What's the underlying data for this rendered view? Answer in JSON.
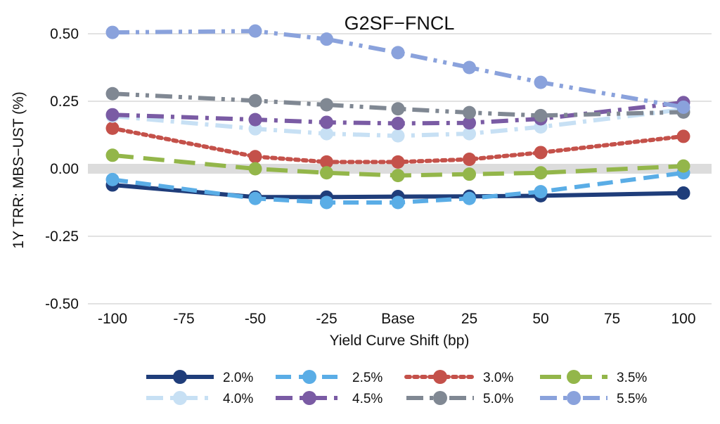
{
  "chart_data": {
    "type": "line",
    "title": "G2SF−FNCL",
    "xlabel": "Yield Curve Shift (bp)",
    "ylabel": "1Y TRR: MBS−UST (%)",
    "categories": [
      "-100",
      "-75",
      "-50",
      "-25",
      "Base",
      "25",
      "50",
      "75",
      "100"
    ],
    "x_tick_labels": [
      "-100",
      "-75",
      "-50",
      "-25",
      "Base",
      "25",
      "50",
      "75",
      "100"
    ],
    "y_tick_labels": [
      "0.50",
      "0.25",
      "0.00",
      "-0.25",
      "-0.50"
    ],
    "y_ticks": [
      0.5,
      0.25,
      0,
      -0.25,
      -0.5
    ],
    "ylim": [
      -0.5,
      0.5
    ],
    "grid": true,
    "zero_band": true,
    "legend_position": "bottom",
    "series": [
      {
        "name": "2.0%",
        "color": "#1f3d7a",
        "dash": "solid",
        "values": [
          -0.06,
          null,
          -0.105,
          -0.105,
          -0.103,
          -0.102,
          -0.1,
          null,
          -0.09
        ]
      },
      {
        "name": "2.5%",
        "color": "#5aade6",
        "dash": "dash",
        "values": [
          -0.04,
          null,
          -0.11,
          -0.125,
          -0.125,
          -0.11,
          -0.085,
          null,
          -0.015
        ]
      },
      {
        "name": "3.0%",
        "color": "#c4514a",
        "dash": "dot",
        "values": [
          0.15,
          null,
          0.045,
          0.025,
          0.025,
          0.035,
          0.06,
          null,
          0.12
        ]
      },
      {
        "name": "3.5%",
        "color": "#93b64a",
        "dash": "longdash",
        "values": [
          0.05,
          null,
          0.0,
          -0.015,
          -0.025,
          -0.02,
          -0.015,
          null,
          0.01
        ]
      },
      {
        "name": "4.0%",
        "color": "#c7e0f4",
        "dash": "dashdot",
        "values": [
          0.195,
          null,
          0.148,
          0.13,
          0.122,
          0.13,
          0.155,
          null,
          0.22
        ]
      },
      {
        "name": "4.5%",
        "color": "#7a5ba4",
        "dash": "dashdot",
        "values": [
          0.2,
          null,
          0.182,
          0.172,
          0.168,
          0.17,
          0.185,
          null,
          0.245
        ]
      },
      {
        "name": "5.0%",
        "color": "#808893",
        "dash": "dashdotdot",
        "values": [
          0.278,
          null,
          0.252,
          0.237,
          0.222,
          0.208,
          0.197,
          null,
          0.21
        ]
      },
      {
        "name": "5.5%",
        "color": "#8aa2dc",
        "dash": "dashdotdot",
        "values": [
          0.505,
          null,
          0.51,
          0.48,
          0.43,
          0.375,
          0.32,
          null,
          0.228
        ]
      }
    ]
  }
}
